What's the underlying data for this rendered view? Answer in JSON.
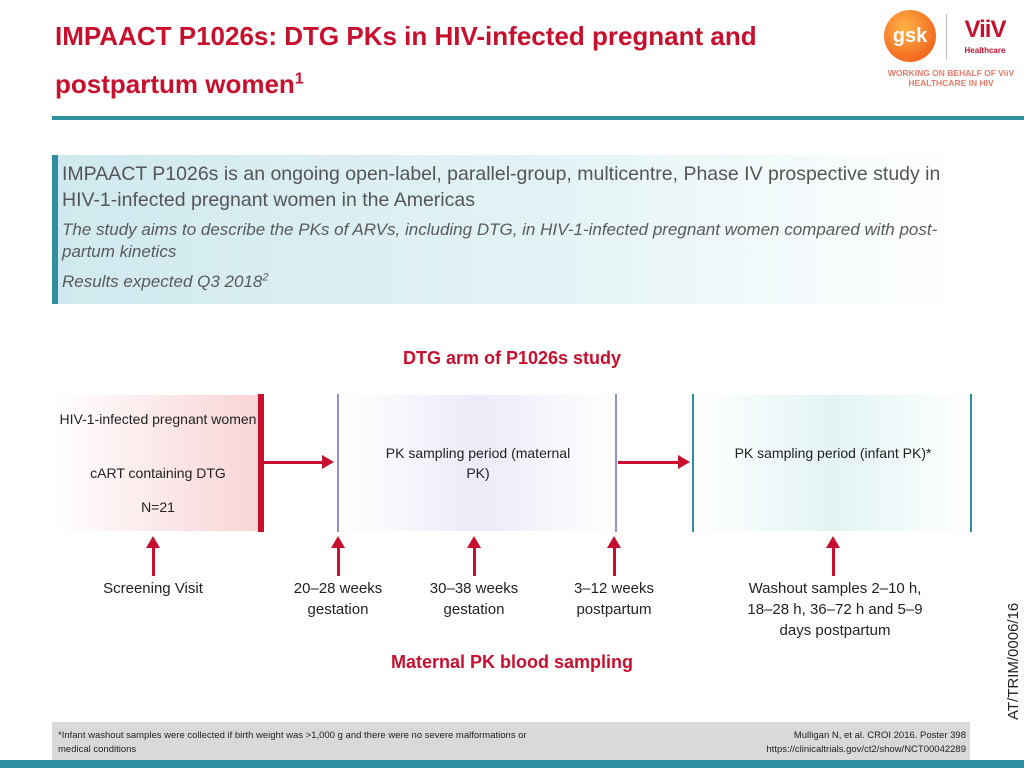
{
  "header": {
    "title_main": "IMPAACT P1026s: DTG PKs in HIV-infected pregnant and postpartum women",
    "title_sup": "1",
    "logos": {
      "gsk": "gsk",
      "viiv": "ViiV",
      "viiv_sub": "Healthcare",
      "working_on_behalf": "WORKING ON BEHALF OF ViiV HEALTHCARE IN HIV"
    }
  },
  "summary": {
    "main": "IMPAACT P1026s is an ongoing open-label, parallel-group, multicentre, Phase IV prospective study in HIV-1-infected pregnant women in the Americas",
    "aim": "The study aims to describe the PKs of ARVs, including DTG, in HIV-1-infected pregnant women compared with post-partum kinetics",
    "results": "Results expected Q3 2018",
    "results_sup": "2"
  },
  "diagram": {
    "title": "DTG arm of P1026s study",
    "screening_box": {
      "population": "HIV-1-infected pregnant women",
      "regimen": "cART containing DTG",
      "n": "N=21"
    },
    "maternal_box": "PK sampling period (maternal PK)",
    "infant_box": "PK sampling period (infant PK)*",
    "timepoints": [
      {
        "label": "Screening Visit"
      },
      {
        "label": "20–28 weeks gestation"
      },
      {
        "label": "30–38 weeks gestation"
      },
      {
        "label": "3–12 weeks postpartum"
      },
      {
        "label": "Washout samples 2–10 h, 18–28 h, 36–72 h and 5–9 days postpartum"
      }
    ],
    "sampling_label": "Maternal PK blood sampling"
  },
  "side_code": "AT/TRIM/0006/16",
  "footer": {
    "footnote": "*Infant washout samples were collected if birth weight was >1,000 g and there were no severe malformations or medical conditions",
    "ref1": "Mulligan N, et al. CROI 2016. Poster 398",
    "ref2": "https://clinicaltrials.gov/ct2/show/NCT00042289"
  },
  "colors": {
    "accent_red": "#c8102e",
    "accent_teal": "#2f8fa0",
    "maternal_line": "#8b8fd6"
  }
}
